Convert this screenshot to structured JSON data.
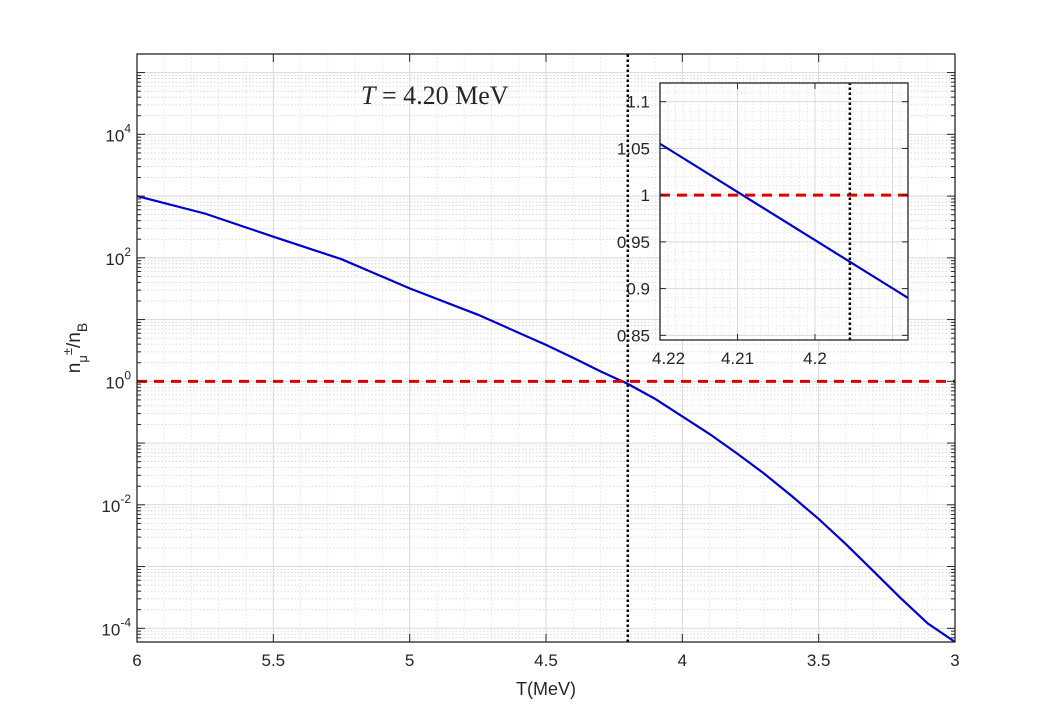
{
  "chart_data": [
    {
      "type": "line",
      "xlabel": "T(MeV)",
      "ylabel": {
        "base": "n",
        "sub": "μ",
        "sup": "±",
        "rest": "/n",
        "rest_sub": "B"
      },
      "x_reversed": true,
      "xlim": [
        3,
        6
      ],
      "x_ticks": [
        6,
        5.5,
        5,
        4.5,
        4,
        3.5,
        3
      ],
      "x_tick_labels": [
        "6",
        "5.5",
        "5",
        "4.5",
        "4",
        "3.5",
        "3"
      ],
      "y_scale": "log",
      "ylim": [
        6e-05,
        200000
      ],
      "y_ticks": [
        0.0001,
        0.01,
        1,
        100,
        10000
      ],
      "y_tick_labels": [
        {
          "base": "10",
          "exp": "-4"
        },
        {
          "base": "10",
          "exp": "-2"
        },
        {
          "base": "10",
          "exp": "0"
        },
        {
          "base": "10",
          "exp": "2"
        },
        {
          "base": "10",
          "exp": "4"
        }
      ],
      "grid": true,
      "minor_grid": true,
      "annotation": {
        "text": "T = 4.20 MeV",
        "italic_part": "T",
        "rest": " = 4.20 MeV"
      },
      "series": [
        {
          "style": "solid",
          "color": "#0000cc",
          "x": [
            6.0,
            5.75,
            5.5,
            5.25,
            5.0,
            4.75,
            4.5,
            4.4,
            4.3,
            4.2,
            4.1,
            4.0,
            3.9,
            3.8,
            3.7,
            3.6,
            3.5,
            3.4,
            3.3,
            3.2,
            3.1,
            3.0
          ],
          "y": [
            1000,
            520,
            220,
            95,
            32,
            12,
            3.9,
            2.4,
            1.45,
            0.91,
            0.52,
            0.27,
            0.14,
            0.068,
            0.032,
            0.014,
            0.0059,
            0.0023,
            0.00085,
            0.00031,
            0.00012,
            6e-05
          ]
        },
        {
          "style": "dashed",
          "color": "#dd0000",
          "x": [
            6,
            3
          ],
          "y": [
            1,
            1
          ]
        },
        {
          "style": "dotted",
          "color": "#000000",
          "x": [
            4.2,
            4.2
          ],
          "y": [
            6e-05,
            200000
          ]
        }
      ]
    },
    {
      "type": "line",
      "inset": true,
      "x_reversed": true,
      "xlim": [
        4.188,
        4.22
      ],
      "x_ticks": [
        4.22,
        4.21,
        4.2
      ],
      "x_tick_labels": [
        "4.22",
        "4.21",
        "4.2"
      ],
      "ylim": [
        0.845,
        1.12
      ],
      "y_ticks": [
        0.85,
        0.9,
        0.95,
        1,
        1.05,
        1.1
      ],
      "y_tick_labels": [
        "0.85",
        "0.9",
        "0.95",
        "1",
        "1.05",
        "1.1"
      ],
      "grid": true,
      "minor_grid": true,
      "series": [
        {
          "style": "solid",
          "color": "#0000cc",
          "x": [
            4.22,
            4.188
          ],
          "y": [
            1.055,
            0.89
          ]
        },
        {
          "style": "dashed",
          "color": "#dd0000",
          "x": [
            4.22,
            4.188
          ],
          "y": [
            1,
            1
          ]
        },
        {
          "style": "dotted",
          "color": "#000000",
          "x": [
            4.1955,
            4.1955
          ],
          "y": [
            0.845,
            1.12
          ]
        }
      ]
    }
  ]
}
